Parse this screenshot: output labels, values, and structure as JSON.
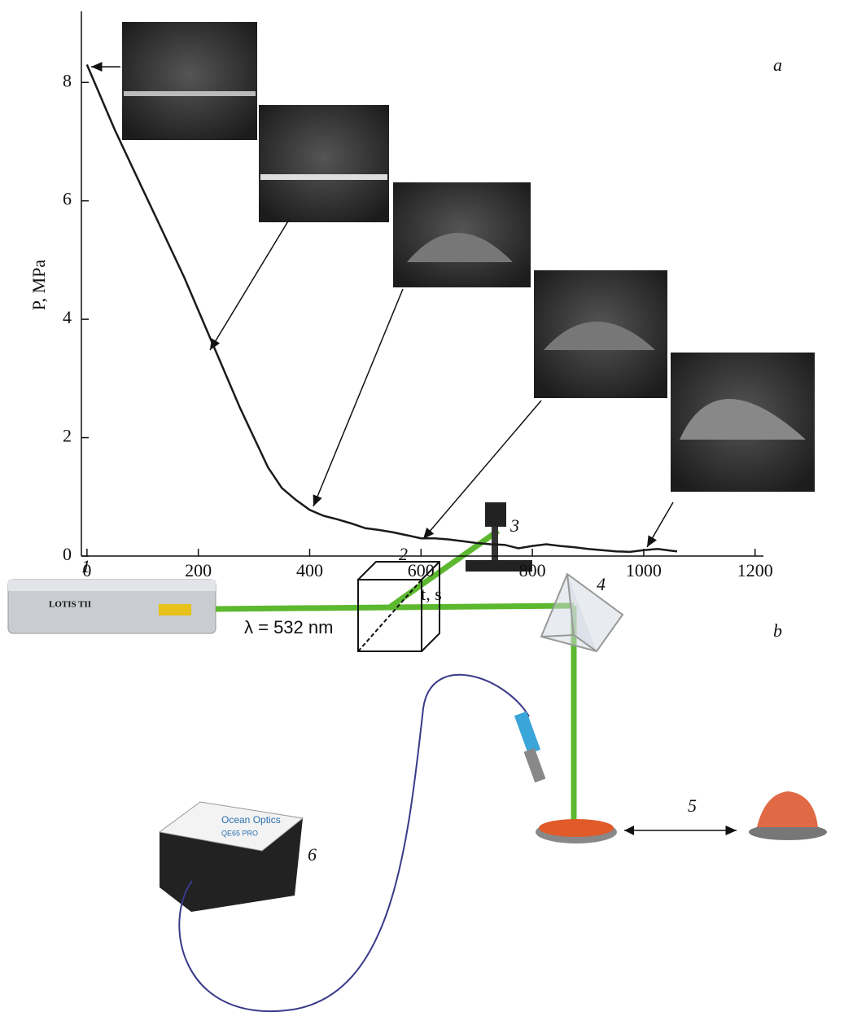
{
  "chart_data": {
    "type": "line",
    "panel_label": "a",
    "xlabel": "t, s",
    "ylabel": "P, MPa",
    "x": [
      0,
      25,
      50,
      75,
      100,
      125,
      150,
      175,
      200,
      225,
      250,
      275,
      300,
      325,
      350,
      375,
      400,
      425,
      450,
      475,
      500,
      525,
      550,
      575,
      600,
      625,
      650,
      675,
      700,
      725,
      750,
      775,
      800,
      825,
      850,
      875,
      900,
      925,
      950,
      975,
      1000,
      1025,
      1050,
      1060
    ],
    "values": [
      8.3,
      7.75,
      7.2,
      6.7,
      6.2,
      5.7,
      5.2,
      4.7,
      4.15,
      3.6,
      3.05,
      2.5,
      2.0,
      1.5,
      1.15,
      0.95,
      0.78,
      0.68,
      0.62,
      0.55,
      0.47,
      0.44,
      0.4,
      0.35,
      0.3,
      0.3,
      0.28,
      0.25,
      0.22,
      0.2,
      0.19,
      0.13,
      0.17,
      0.2,
      0.17,
      0.15,
      0.12,
      0.1,
      0.08,
      0.07,
      0.1,
      0.12,
      0.09,
      0.08
    ],
    "color": "#1a1a1a",
    "xlim": [
      -10,
      1215
    ],
    "ylim": [
      0,
      9.2
    ],
    "xticks": [
      0,
      200,
      400,
      600,
      800,
      1000,
      1200
    ],
    "yticks": [
      0,
      2,
      4,
      6,
      8
    ]
  },
  "diagram": {
    "panel_label": "b",
    "labels": [
      "1",
      "2",
      "3",
      "4",
      "5",
      "6"
    ],
    "wavelength": "λ = 532 nm",
    "laser_brand": "LOTIS TII",
    "spectrometer_brand": "Ocean Optics",
    "spectrometer_model": "QE65 PRO"
  }
}
